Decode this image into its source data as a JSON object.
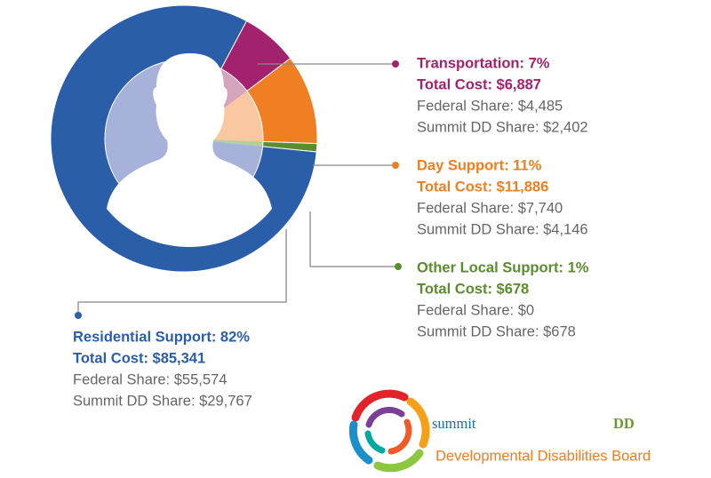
{
  "chart_data": {
    "type": "donut",
    "labels": [
      "Transportation: 7%",
      "Day Support: 11%",
      "Other Local Support: 1%",
      "Residential Support: 82%"
    ],
    "values": [
      7,
      11,
      1,
      82
    ],
    "colors": [
      "#a2226e",
      "#f07e22",
      "#5b8c2d",
      "#2b5ea8"
    ],
    "inner_colors": [
      "#d4a4bd",
      "#f9c8a0",
      "#b5cc9c",
      "#a7b2db"
    ],
    "details": [
      [
        "Total Cost: $6,887",
        "Federal Share: $4,485",
        "Summit DD Share: $2,402"
      ],
      [
        "Total Cost: $11,886",
        "Federal Share: $7,740",
        "Summit DD Share: $4,146"
      ],
      [
        "Total Cost: $678",
        "Federal Share: $0",
        "Summit DD Share: $678"
      ],
      [
        "Total Cost: $85,341",
        "Federal Share: $55,574",
        "Summit DD Share: $29,767"
      ]
    ]
  },
  "logo": {
    "name": "summit",
    "suffix": "DD",
    "tagline": "Developmental Disabilities Board"
  }
}
